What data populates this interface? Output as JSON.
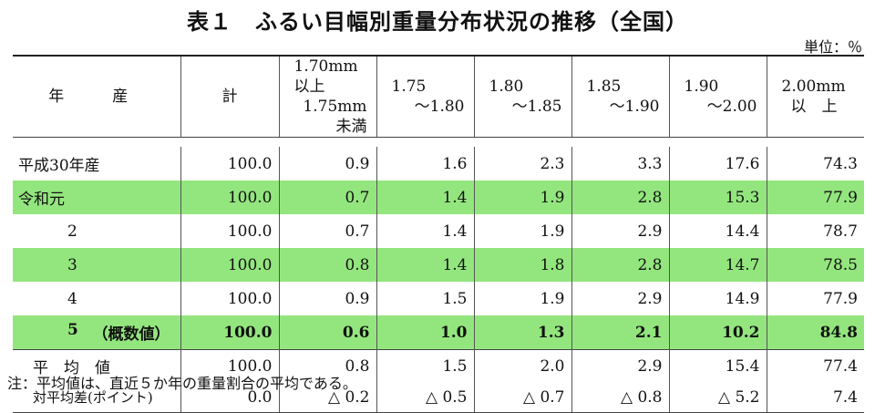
{
  "title": "表１　ふるい目幅別重量分布状況の推移（全国）",
  "unit": "単位：％",
  "headers": {
    "year": "年　産",
    "total": "計",
    "b1_top": "1.70mm以上",
    "b1_bottom": "1.75mm未満",
    "b2_top": "1.75",
    "b2_bottom": "～1.80",
    "b3_top": "1.80",
    "b3_bottom": "～1.85",
    "b4_top": "1.85",
    "b4_bottom": "～1.90",
    "b5_top": "1.90",
    "b5_bottom": "～2.00",
    "b6_top": "2.00mm",
    "b6_bottom": "以　上"
  },
  "rows": [
    {
      "year": "平成30年産",
      "values": [
        "100.0",
        "0.9",
        "1.6",
        "2.3",
        "3.3",
        "17.6",
        "74.3"
      ]
    },
    {
      "year": "令和元",
      "values": [
        "100.0",
        "0.7",
        "1.4",
        "1.9",
        "2.8",
        "15.3",
        "77.9"
      ]
    },
    {
      "year": "2",
      "values": [
        "100.0",
        "0.7",
        "1.4",
        "1.9",
        "2.9",
        "14.4",
        "78.7"
      ]
    },
    {
      "year": "3",
      "values": [
        "100.0",
        "0.8",
        "1.4",
        "1.8",
        "2.8",
        "14.7",
        "78.5"
      ]
    },
    {
      "year": "4",
      "values": [
        "100.0",
        "0.9",
        "1.5",
        "1.9",
        "2.9",
        "14.9",
        "77.9"
      ]
    },
    {
      "year": "5",
      "year_note": "（概数値）",
      "values": [
        "100.0",
        "0.6",
        "1.0",
        "1.3",
        "2.1",
        "10.2",
        "84.8"
      ]
    }
  ],
  "average": {
    "label": "平　均　値",
    "values": [
      "100.0",
      "0.8",
      "1.5",
      "2.0",
      "2.9",
      "15.4",
      "77.4"
    ]
  },
  "difference": {
    "label": "対平均差(ポイント)",
    "values": [
      "0.0",
      "△ 0.2",
      "△ 0.5",
      "△ 0.7",
      "△ 0.8",
      "△ 5.2",
      "7.4"
    ]
  },
  "note": "注：平均値は、直近５か年の重量割合の平均である。",
  "colors": {
    "highlight_row": "#93e67e"
  }
}
